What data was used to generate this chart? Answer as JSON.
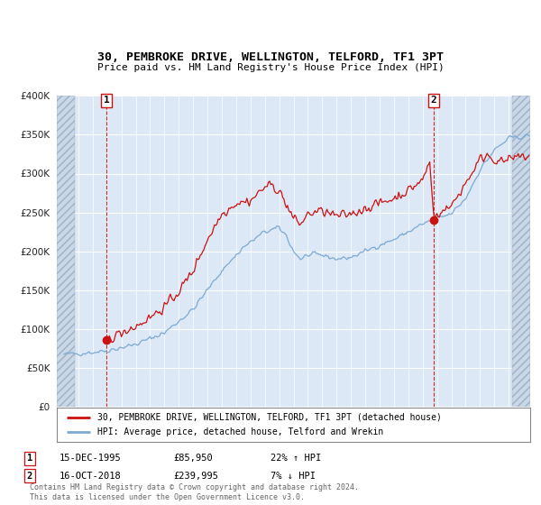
{
  "title": "30, PEMBROKE DRIVE, WELLINGTON, TELFORD, TF1 3PT",
  "subtitle": "Price paid vs. HM Land Registry's House Price Index (HPI)",
  "legend_line1": "30, PEMBROKE DRIVE, WELLINGTON, TELFORD, TF1 3PT (detached house)",
  "legend_line2": "HPI: Average price, detached house, Telford and Wrekin",
  "footer": "Contains HM Land Registry data © Crown copyright and database right 2024.\nThis data is licensed under the Open Government Licence v3.0.",
  "sale1_date": "15-DEC-1995",
  "sale1_price": "£85,950",
  "sale1_hpi": "22% ↑ HPI",
  "sale2_date": "16-OCT-2018",
  "sale2_price": "£239,995",
  "sale2_hpi": "7% ↓ HPI",
  "sale1_x": 1995.96,
  "sale1_y": 85950,
  "sale2_x": 2018.79,
  "sale2_y": 239995,
  "ylim": [
    0,
    400000
  ],
  "yticks": [
    0,
    50000,
    100000,
    150000,
    200000,
    250000,
    300000,
    350000,
    400000
  ],
  "xlim_start": 1992.5,
  "xlim_end": 2025.5,
  "hatch_left_end": 1993.75,
  "hatch_right_start": 2024.25,
  "bg_color": "#dce8f5",
  "hatch_color": "#c0cdd8",
  "grid_color": "#ffffff",
  "red_color": "#cc1111",
  "blue_color": "#7baad4",
  "vline_color": "#cc1111",
  "box_edge_color": "#cc1111"
}
